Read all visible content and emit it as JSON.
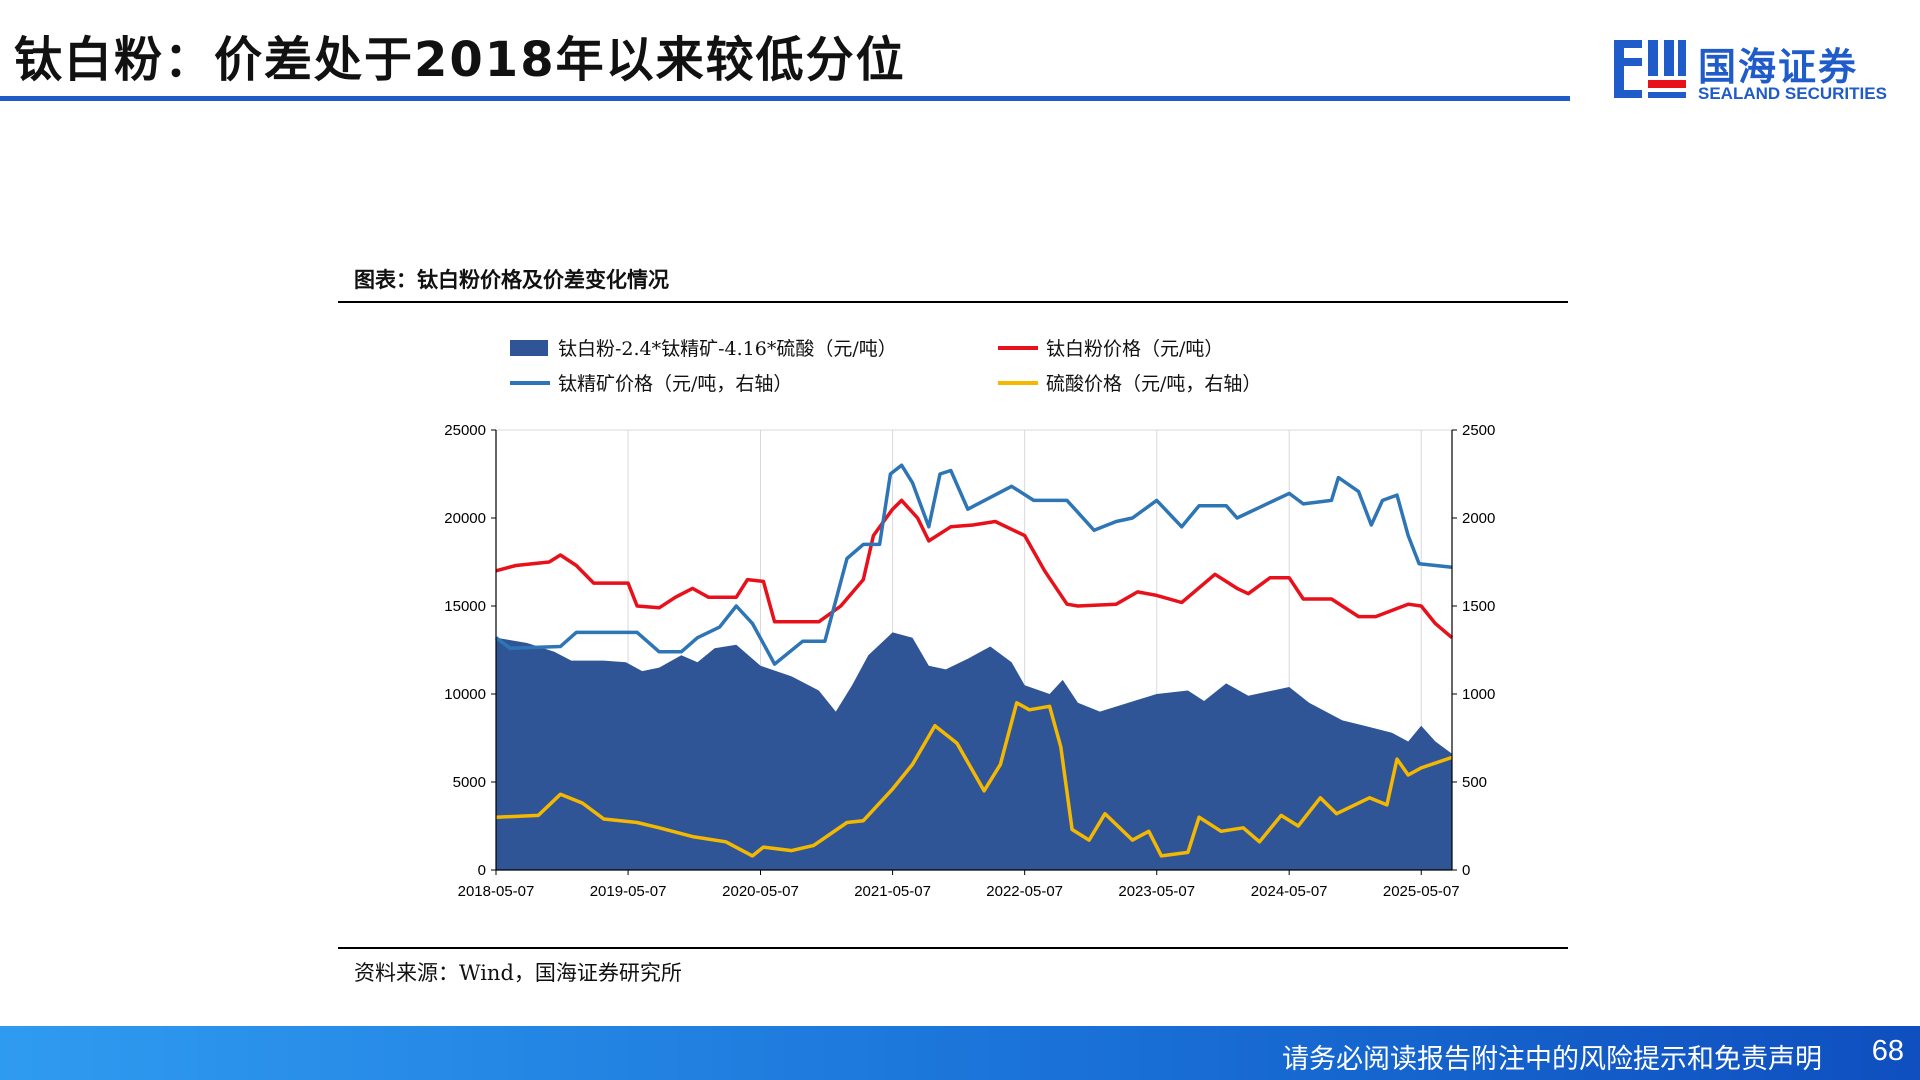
{
  "header": {
    "title": "钛白粉：价差处于2018年以来较低分位",
    "logo_cn": "国海证券",
    "logo_en": "SEALAND SECURITIES"
  },
  "figure": {
    "title": "图表：钛白粉价格及价差变化情况",
    "source": "资料来源：Wind，国海证券研究所"
  },
  "footer": {
    "disclaimer": "请务必阅读报告附注中的风险提示和免责声明",
    "page_number": "68"
  },
  "colors": {
    "brand_blue": "#1f5cc9",
    "spread_fill": "#2f5597",
    "tio2_line": "#e8101a",
    "ilmenite_line": "#2e75b6",
    "acid_line": "#f5b800"
  },
  "chart_data": {
    "type": "area",
    "x_ticks": [
      "2018-05-07",
      "2019-05-07",
      "2020-05-07",
      "2021-05-07",
      "2022-05-07",
      "2023-05-07",
      "2024-05-07",
      "2025-05-07"
    ],
    "x_range": [
      "2018-05-07",
      "2025-07-31"
    ],
    "left_axis": {
      "min": 0,
      "max": 25000,
      "ticks": [
        "0",
        "5000",
        "10000",
        "15000",
        "20000",
        "25000"
      ]
    },
    "right_axis": {
      "min": 0,
      "max": 2500,
      "ticks": [
        "0",
        "500",
        "1000",
        "1500",
        "2000",
        "2500"
      ]
    },
    "grid": "vertical",
    "legend": "top",
    "series": [
      {
        "name": "钛白粉-2.4*钛精矿-4.16*硫酸（元/吨）",
        "render": "area",
        "axis": "left",
        "color": "#2f5597",
        "points": [
          [
            "2018-05-07",
            13200
          ],
          [
            "2018-08-01",
            12900
          ],
          [
            "2018-10-15",
            12400
          ],
          [
            "2018-12-01",
            11900
          ],
          [
            "2019-03-01",
            11900
          ],
          [
            "2019-05-01",
            11800
          ],
          [
            "2019-06-15",
            11300
          ],
          [
            "2019-08-01",
            11500
          ],
          [
            "2019-10-01",
            12200
          ],
          [
            "2019-11-15",
            11800
          ],
          [
            "2020-01-01",
            12600
          ],
          [
            "2020-03-01",
            12800
          ],
          [
            "2020-05-07",
            11600
          ],
          [
            "2020-08-01",
            11000
          ],
          [
            "2020-10-15",
            10200
          ],
          [
            "2020-12-01",
            9000
          ],
          [
            "2021-01-15",
            10500
          ],
          [
            "2021-03-01",
            12200
          ],
          [
            "2021-05-07",
            13500
          ],
          [
            "2021-07-01",
            13200
          ],
          [
            "2021-08-15",
            11600
          ],
          [
            "2021-10-01",
            11400
          ],
          [
            "2021-12-01",
            12000
          ],
          [
            "2022-02-01",
            12700
          ],
          [
            "2022-04-01",
            11800
          ],
          [
            "2022-05-07",
            10500
          ],
          [
            "2022-07-15",
            10000
          ],
          [
            "2022-08-20",
            10800
          ],
          [
            "2022-10-01",
            9500
          ],
          [
            "2022-12-01",
            9000
          ],
          [
            "2023-05-07",
            10000
          ],
          [
            "2023-08-01",
            10200
          ],
          [
            "2023-09-15",
            9600
          ],
          [
            "2023-11-15",
            10600
          ],
          [
            "2024-01-15",
            9900
          ],
          [
            "2024-05-07",
            10400
          ],
          [
            "2024-07-01",
            9500
          ],
          [
            "2024-10-01",
            8500
          ],
          [
            "2024-12-01",
            8200
          ],
          [
            "2025-02-15",
            7800
          ],
          [
            "2025-04-01",
            7300
          ],
          [
            "2025-05-07",
            8200
          ],
          [
            "2025-06-15",
            7300
          ],
          [
            "2025-07-31",
            6600
          ]
        ]
      },
      {
        "name": "钛白粉价格（元/吨）",
        "render": "line",
        "axis": "left",
        "color": "#e8101a",
        "points": [
          [
            "2018-05-07",
            17000
          ],
          [
            "2018-07-01",
            17300
          ],
          [
            "2018-10-01",
            17500
          ],
          [
            "2018-11-01",
            17900
          ],
          [
            "2018-12-15",
            17300
          ],
          [
            "2019-02-01",
            16300
          ],
          [
            "2019-05-07",
            16300
          ],
          [
            "2019-06-01",
            15000
          ],
          [
            "2019-08-01",
            14900
          ],
          [
            "2019-09-15",
            15500
          ],
          [
            "2019-11-01",
            16000
          ],
          [
            "2019-12-15",
            15500
          ],
          [
            "2020-03-01",
            15500
          ],
          [
            "2020-04-01",
            16500
          ],
          [
            "2020-05-15",
            16400
          ],
          [
            "2020-06-15",
            14100
          ],
          [
            "2020-10-15",
            14100
          ],
          [
            "2020-12-15",
            15000
          ],
          [
            "2021-02-15",
            16500
          ],
          [
            "2021-03-15",
            19000
          ],
          [
            "2021-05-07",
            20500
          ],
          [
            "2021-06-01",
            21000
          ],
          [
            "2021-07-15",
            20000
          ],
          [
            "2021-08-15",
            18700
          ],
          [
            "2021-10-15",
            19500
          ],
          [
            "2021-12-15",
            19600
          ],
          [
            "2022-02-15",
            19800
          ],
          [
            "2022-05-07",
            19000
          ],
          [
            "2022-07-01",
            17000
          ],
          [
            "2022-09-01",
            15100
          ],
          [
            "2022-10-01",
            15000
          ],
          [
            "2023-01-15",
            15100
          ],
          [
            "2023-03-15",
            15800
          ],
          [
            "2023-05-07",
            15600
          ],
          [
            "2023-07-15",
            15200
          ],
          [
            "2023-10-15",
            16800
          ],
          [
            "2023-12-15",
            16000
          ],
          [
            "2024-01-15",
            15700
          ],
          [
            "2024-03-15",
            16600
          ],
          [
            "2024-05-07",
            16600
          ],
          [
            "2024-06-15",
            15400
          ],
          [
            "2024-09-01",
            15400
          ],
          [
            "2024-11-15",
            14400
          ],
          [
            "2025-01-01",
            14400
          ],
          [
            "2025-04-01",
            15100
          ],
          [
            "2025-05-07",
            15000
          ],
          [
            "2025-06-15",
            14000
          ],
          [
            "2025-07-31",
            13200
          ]
        ]
      },
      {
        "name": "钛精矿价格（元/吨，右轴）",
        "render": "line",
        "axis": "right",
        "color": "#2e75b6",
        "points": [
          [
            "2018-05-07",
            1320
          ],
          [
            "2018-06-15",
            1260
          ],
          [
            "2018-11-01",
            1270
          ],
          [
            "2018-12-15",
            1350
          ],
          [
            "2019-06-01",
            1350
          ],
          [
            "2019-08-01",
            1240
          ],
          [
            "2019-10-01",
            1240
          ],
          [
            "2019-11-15",
            1320
          ],
          [
            "2020-01-15",
            1380
          ],
          [
            "2020-03-01",
            1500
          ],
          [
            "2020-04-15",
            1400
          ],
          [
            "2020-06-15",
            1170
          ],
          [
            "2020-09-01",
            1300
          ],
          [
            "2020-11-01",
            1300
          ],
          [
            "2021-01-01",
            1770
          ],
          [
            "2021-02-15",
            1850
          ],
          [
            "2021-04-01",
            1850
          ],
          [
            "2021-05-01",
            2250
          ],
          [
            "2021-06-01",
            2300
          ],
          [
            "2021-07-01",
            2200
          ],
          [
            "2021-08-15",
            1950
          ],
          [
            "2021-09-15",
            2250
          ],
          [
            "2021-10-15",
            2270
          ],
          [
            "2021-12-01",
            2050
          ],
          [
            "2022-04-01",
            2180
          ],
          [
            "2022-06-01",
            2100
          ],
          [
            "2022-09-01",
            2100
          ],
          [
            "2022-11-15",
            1930
          ],
          [
            "2023-01-15",
            1980
          ],
          [
            "2023-03-01",
            2000
          ],
          [
            "2023-05-07",
            2100
          ],
          [
            "2023-07-15",
            1950
          ],
          [
            "2023-09-01",
            2070
          ],
          [
            "2023-11-15",
            2070
          ],
          [
            "2023-12-15",
            2000
          ],
          [
            "2024-02-15",
            2060
          ],
          [
            "2024-05-07",
            2140
          ],
          [
            "2024-06-15",
            2080
          ],
          [
            "2024-09-01",
            2100
          ],
          [
            "2024-09-20",
            2230
          ],
          [
            "2024-11-15",
            2150
          ],
          [
            "2024-12-20",
            1960
          ],
          [
            "2025-01-20",
            2100
          ],
          [
            "2025-03-01",
            2130
          ],
          [
            "2025-04-01",
            1900
          ],
          [
            "2025-05-01",
            1740
          ],
          [
            "2025-07-31",
            1720
          ]
        ]
      },
      {
        "name": "硫酸价格（元/吨，右轴）",
        "render": "line",
        "axis": "right",
        "color": "#f5b800",
        "points": [
          [
            "2018-05-07",
            300
          ],
          [
            "2018-09-01",
            310
          ],
          [
            "2018-11-01",
            430
          ],
          [
            "2019-01-01",
            380
          ],
          [
            "2019-03-01",
            290
          ],
          [
            "2019-06-01",
            270
          ],
          [
            "2019-08-01",
            240
          ],
          [
            "2019-11-01",
            190
          ],
          [
            "2020-02-01",
            160
          ],
          [
            "2020-04-15",
            80
          ],
          [
            "2020-05-15",
            130
          ],
          [
            "2020-08-01",
            110
          ],
          [
            "2020-10-01",
            140
          ],
          [
            "2021-01-01",
            270
          ],
          [
            "2021-02-15",
            280
          ],
          [
            "2021-05-07",
            460
          ],
          [
            "2021-07-01",
            600
          ],
          [
            "2021-09-01",
            820
          ],
          [
            "2021-11-01",
            720
          ],
          [
            "2022-01-15",
            450
          ],
          [
            "2022-03-01",
            600
          ],
          [
            "2022-04-15",
            950
          ],
          [
            "2022-05-20",
            910
          ],
          [
            "2022-07-15",
            930
          ],
          [
            "2022-08-15",
            700
          ],
          [
            "2022-09-15",
            230
          ],
          [
            "2022-11-01",
            170
          ],
          [
            "2022-12-15",
            320
          ],
          [
            "2023-03-01",
            170
          ],
          [
            "2023-04-15",
            220
          ],
          [
            "2023-05-20",
            80
          ],
          [
            "2023-08-01",
            100
          ],
          [
            "2023-09-01",
            300
          ],
          [
            "2023-11-01",
            220
          ],
          [
            "2024-01-01",
            240
          ],
          [
            "2024-02-15",
            160
          ],
          [
            "2024-04-15",
            310
          ],
          [
            "2024-06-01",
            250
          ],
          [
            "2024-08-01",
            410
          ],
          [
            "2024-09-15",
            320
          ],
          [
            "2024-12-15",
            410
          ],
          [
            "2025-02-01",
            370
          ],
          [
            "2025-03-01",
            630
          ],
          [
            "2025-04-01",
            540
          ],
          [
            "2025-05-07",
            580
          ],
          [
            "2025-07-31",
            640
          ]
        ]
      }
    ]
  }
}
